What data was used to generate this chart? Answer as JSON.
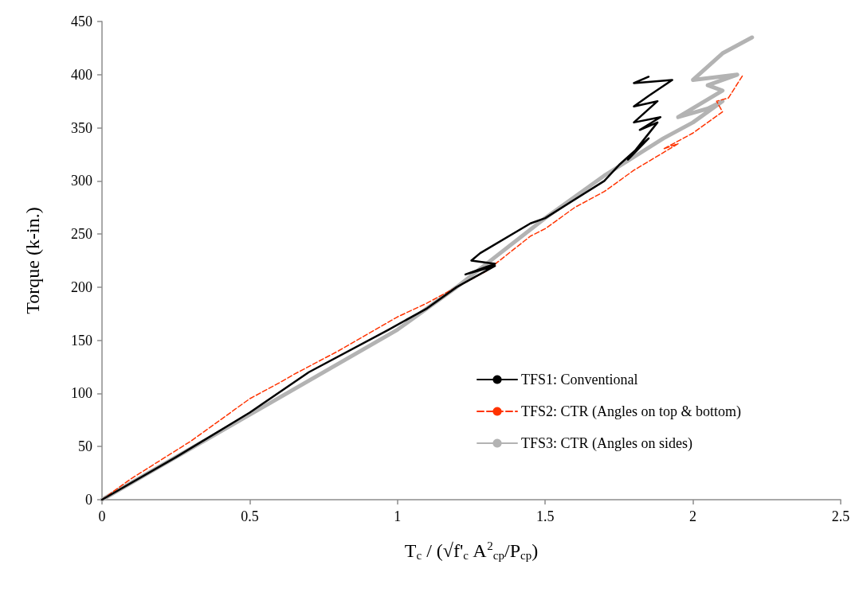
{
  "chart_data": {
    "type": "line",
    "xlabel": "T$_{c}$ / (√f'$_{c}$ A$^{2}$$_{cp}$/P$_{cp}$)",
    "ylabel": "Torque (k-in.)",
    "xlim": [
      0,
      2.5
    ],
    "xticks": [
      0,
      0.5,
      1,
      1.5,
      2,
      2.5
    ],
    "ylim": [
      0,
      450
    ],
    "yticks": [
      0,
      50,
      100,
      150,
      200,
      250,
      300,
      350,
      400,
      450
    ],
    "grid": false,
    "legend": "right",
    "marker": "none",
    "series": [
      {
        "name": "TFS1: Conventional",
        "color": "#000000",
        "line_style": "solid",
        "x": [
          0,
          0.25,
          0.5,
          0.7,
          0.97,
          1.1,
          1.2,
          1.33,
          1.23,
          1.33,
          1.25,
          1.28,
          1.45,
          1.5,
          1.7,
          1.75,
          1.85,
          1.78,
          1.88,
          1.82,
          1.89,
          1.8,
          1.88,
          1.8,
          1.85,
          1.93,
          1.8,
          1.85
        ],
        "values": [
          0,
          40,
          82,
          120,
          160,
          180,
          200,
          220,
          212,
          222,
          225,
          232,
          260,
          265,
          300,
          315,
          340,
          320,
          355,
          348,
          360,
          355,
          375,
          370,
          380,
          395,
          392,
          398
        ]
      },
      {
        "name": "TFS2: CTR (Angles on top & bottom)",
        "color": "#ff3300",
        "line_style": "dashed",
        "x": [
          0,
          0.1,
          0.3,
          0.45,
          0.5,
          0.6,
          0.65,
          0.8,
          1.0,
          1.1,
          1.3,
          1.45,
          1.5,
          1.6,
          1.7,
          1.8,
          1.95,
          1.9,
          2.0,
          2.05,
          2.1,
          2.08,
          2.12,
          2.17
        ],
        "values": [
          0,
          20,
          55,
          85,
          95,
          110,
          118,
          140,
          172,
          185,
          215,
          248,
          255,
          275,
          290,
          310,
          335,
          330,
          345,
          355,
          365,
          375,
          378,
          400
        ]
      },
      {
        "name": "TFS3: CTR (Angles on sides)",
        "color": "#b3b3b3",
        "line_style": "solid",
        "x": [
          0,
          0.5,
          1.0,
          1.2,
          1.5,
          1.7,
          1.9,
          2.0,
          2.1,
          2.05,
          1.95,
          2.1,
          2.05,
          2.15,
          2.0,
          2.1,
          2.2
        ],
        "values": [
          0,
          80,
          160,
          200,
          265,
          305,
          340,
          355,
          375,
          368,
          360,
          385,
          390,
          400,
          395,
          420,
          435
        ]
      }
    ]
  }
}
